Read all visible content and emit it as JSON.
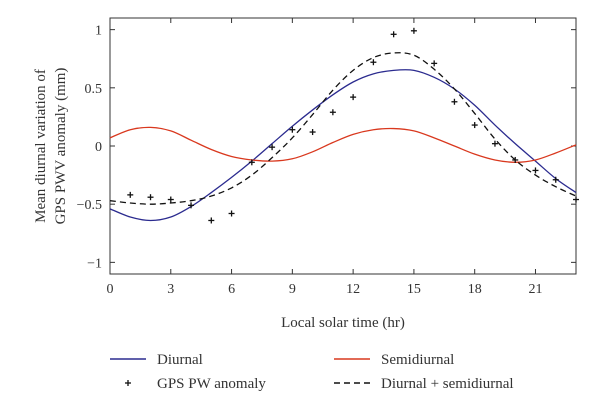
{
  "chart_data": {
    "type": "line",
    "xlabel": "Local solar time (hr)",
    "ylabel_lines": [
      "Mean diurnal variation of",
      "GPS PWV anomaly (mm)"
    ],
    "xlim": [
      0,
      23
    ],
    "ylim": [
      -1.1,
      1.1
    ],
    "x_ticks": [
      0,
      3,
      6,
      9,
      12,
      15,
      18,
      21
    ],
    "y_ticks": [
      -1,
      -0.5,
      0,
      0.5,
      1
    ],
    "y_tick_labels": [
      "−1",
      "−0.5",
      "0",
      "0.5",
      "1"
    ],
    "grid": false,
    "legend_position": "bottom",
    "series": [
      {
        "name": "Diurnal",
        "style": "solid",
        "color": "#2b2b8f",
        "x": [
          0,
          1,
          2,
          3,
          4,
          5,
          6,
          7,
          8,
          9,
          10,
          11,
          12,
          13,
          14,
          15,
          16,
          17,
          18,
          19,
          20,
          21,
          22,
          23
        ],
        "y": [
          -0.54,
          -0.61,
          -0.64,
          -0.61,
          -0.52,
          -0.4,
          -0.27,
          -0.13,
          0.02,
          0.17,
          0.31,
          0.44,
          0.55,
          0.62,
          0.65,
          0.65,
          0.59,
          0.49,
          0.35,
          0.18,
          0.02,
          -0.13,
          -0.28,
          -0.4
        ]
      },
      {
        "name": "Semidiurnal",
        "style": "solid",
        "color": "#d9381e",
        "x": [
          0,
          1,
          2,
          3,
          4,
          5,
          6,
          7,
          8,
          9,
          10,
          11,
          12,
          13,
          14,
          15,
          16,
          17,
          18,
          19,
          20,
          21,
          22,
          23
        ],
        "y": [
          0.07,
          0.14,
          0.16,
          0.13,
          0.05,
          -0.03,
          -0.09,
          -0.12,
          -0.13,
          -0.11,
          -0.05,
          0.03,
          0.1,
          0.14,
          0.15,
          0.13,
          0.07,
          0.0,
          -0.07,
          -0.12,
          -0.14,
          -0.12,
          -0.06,
          0.01
        ]
      },
      {
        "name": "GPS PW anomaly",
        "style": "markers",
        "color": "#111111",
        "x": [
          1,
          2,
          3,
          4,
          5,
          6,
          7,
          8,
          9,
          10,
          11,
          12,
          13,
          14,
          15,
          16,
          17,
          18,
          19,
          20,
          21,
          22,
          23
        ],
        "y": [
          -0.42,
          -0.44,
          -0.46,
          -0.51,
          -0.64,
          -0.58,
          -0.14,
          -0.01,
          0.14,
          0.12,
          0.29,
          0.42,
          0.72,
          0.96,
          0.99,
          0.71,
          0.38,
          0.18,
          0.02,
          -0.12,
          -0.21,
          -0.29,
          -0.46
        ]
      },
      {
        "name": "Diurnal + semidiurnal",
        "style": "dashed",
        "color": "#111111",
        "x": [
          0,
          1,
          2,
          3,
          4,
          5,
          6,
          7,
          8,
          9,
          10,
          11,
          12,
          13,
          14,
          15,
          16,
          17,
          18,
          19,
          20,
          21,
          22,
          23
        ],
        "y": [
          -0.47,
          -0.49,
          -0.5,
          -0.49,
          -0.47,
          -0.43,
          -0.36,
          -0.25,
          -0.1,
          0.07,
          0.27,
          0.48,
          0.65,
          0.76,
          0.8,
          0.78,
          0.66,
          0.49,
          0.28,
          0.06,
          -0.12,
          -0.25,
          -0.35,
          -0.43
        ]
      }
    ]
  }
}
